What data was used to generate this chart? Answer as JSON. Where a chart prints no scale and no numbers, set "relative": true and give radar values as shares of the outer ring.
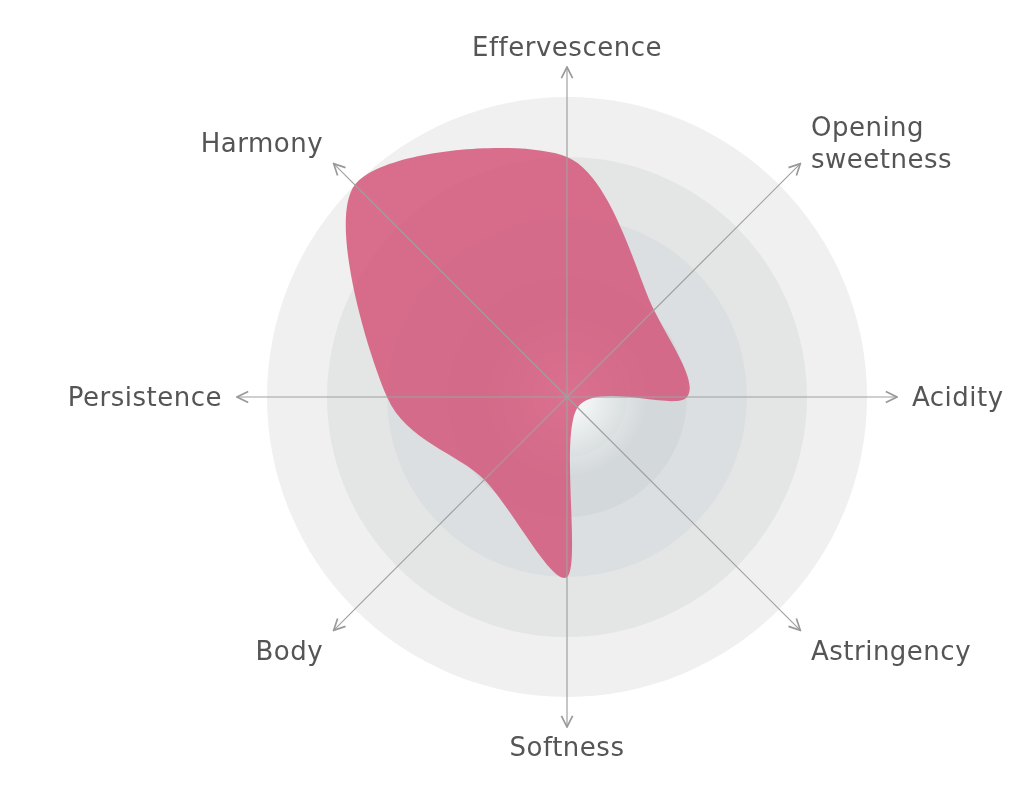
{
  "chart_data": {
    "type": "radar",
    "relative": true,
    "grid": true,
    "categories": [
      "Effervescence",
      "Opening sweetness",
      "Acidity",
      "Astringency",
      "Softness",
      "Body",
      "Persistence",
      "Harmony"
    ],
    "series": [
      {
        "color": "#d4577a",
        "values": [
          0.8,
          0.41,
          0.4,
          0.05,
          0.6,
          0.39,
          0.6,
          1.0
        ]
      }
    ]
  }
}
